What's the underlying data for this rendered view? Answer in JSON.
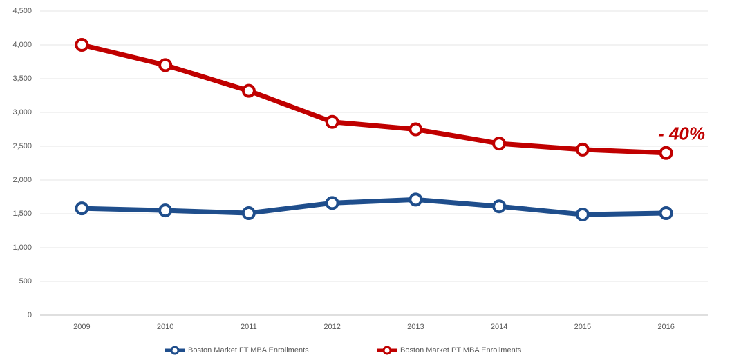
{
  "chart_data": {
    "type": "line",
    "categories": [
      "2009",
      "2010",
      "2011",
      "2012",
      "2013",
      "2014",
      "2015",
      "2016"
    ],
    "series": [
      {
        "name": "Boston Market FT MBA Enrollments",
        "color": "#1f4e8c",
        "values": [
          1580,
          1550,
          1510,
          1660,
          1710,
          1610,
          1490,
          1510
        ]
      },
      {
        "name": "Boston Market PT MBA Enrollments",
        "color": "#c00000",
        "values": [
          4000,
          3700,
          3320,
          2860,
          2750,
          2540,
          2450,
          2400
        ]
      }
    ],
    "ylim": [
      0,
      4500
    ],
    "yticks": [
      0,
      500,
      {
        "value": 1000,
        "label": "1,000"
      },
      {
        "value": 1500,
        "label": "1,500"
      },
      {
        "value": 2000,
        "label": "2,000"
      },
      {
        "value": 2500,
        "label": "2,500"
      },
      {
        "value": 3000,
        "label": "3,000"
      },
      {
        "value": 3500,
        "label": "3,500"
      },
      {
        "value": 4000,
        "label": "4,000"
      },
      {
        "value": 4500,
        "label": "4,500"
      }
    ],
    "grid": true,
    "legend": "bottom",
    "annotations": [
      {
        "text": "- 40%",
        "color": "#c00000"
      }
    ]
  }
}
